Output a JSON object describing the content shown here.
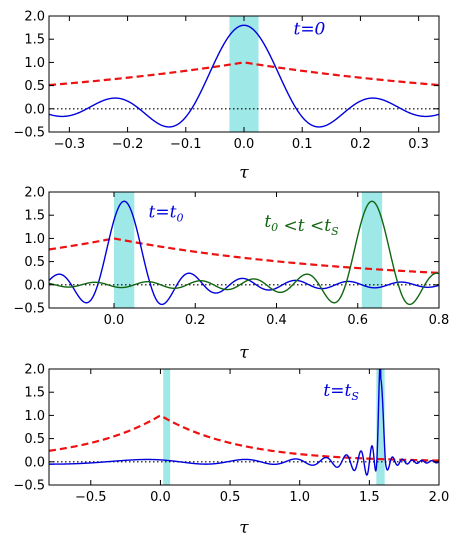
{
  "chart_data": [
    {
      "type": "line",
      "xlabel": "τ",
      "xlim": [
        -0.335,
        0.335
      ],
      "ylim": [
        -0.5,
        2.0
      ],
      "xticks": [
        -0.3,
        -0.2,
        -0.1,
        0.0,
        0.1,
        0.2,
        0.3
      ],
      "xtick_labels": [
        "−0.3",
        "−0.2",
        "−0.1",
        "0.0",
        "0.1",
        "0.2",
        "0.3"
      ],
      "yticks": [
        -0.5,
        0.0,
        0.5,
        1.0,
        1.5,
        2.0
      ],
      "ytick_labels": [
        "−0.5",
        "0.0",
        "0.5",
        "1.0",
        "1.5",
        "2.0"
      ],
      "zero_line": "black-dotted",
      "highlight_bands": [
        {
          "x0": -0.025,
          "x1": 0.025,
          "color": "#7fe0e0"
        }
      ],
      "envelope": {
        "style": "red-dashed",
        "color": "#ee1111",
        "peak_x": 0.0,
        "peak_y": 1.0,
        "decay_rate": 2.0
      },
      "series": [
        {
          "color": "#0000dd",
          "kind": "sinc",
          "center": 0.0,
          "amplitude": 1.8,
          "half_width": 0.09
        }
      ],
      "annotations": [
        {
          "text": "t=0",
          "parts": [
            [
              "t",
              ""
            ],
            [
              "=0",
              ""
            ]
          ],
          "color": "#0000dd",
          "x": 0.085,
          "y": 1.6
        }
      ]
    },
    {
      "type": "line",
      "xlabel": "τ",
      "xlim": [
        -0.16,
        0.8
      ],
      "ylim": [
        -0.5,
        2.0
      ],
      "xticks": [
        0.0,
        0.2,
        0.4,
        0.6,
        0.8
      ],
      "xtick_labels": [
        "0.0",
        "0.2",
        "0.4",
        "0.6",
        "0.8"
      ],
      "yticks": [
        -0.5,
        0.0,
        0.5,
        1.0,
        1.5,
        2.0
      ],
      "ytick_labels": [
        "−0.5",
        "0.0",
        "0.5",
        "1.0",
        "1.5",
        "2.0"
      ],
      "zero_line": "black-dotted",
      "highlight_bands": [
        {
          "x0": 0.0,
          "x1": 0.05,
          "color": "#7fe0e0"
        },
        {
          "x0": 0.61,
          "x1": 0.66,
          "color": "#7fe0e0"
        }
      ],
      "envelope": {
        "style": "red-dashed",
        "color": "#ee1111",
        "peak_x": 0.0,
        "peak_y": 1.0,
        "decay_rate": 1.7
      },
      "series": [
        {
          "color": "#0000dd",
          "kind": "chirp",
          "center": 0.025,
          "amplitude": 1.8,
          "half_width": 0.065
        },
        {
          "color": "#116611",
          "kind": "chirp",
          "center": 0.635,
          "amplitude": 1.8,
          "half_width": 0.065
        }
      ],
      "annotations": [
        {
          "text": "t=t0",
          "parts": [
            [
              "t=t",
              ""
            ],
            [
              "0",
              "sub"
            ]
          ],
          "color": "#0000dd",
          "x": 0.085,
          "y": 1.45
        },
        {
          "text": "t0 <t<tS",
          "parts": [
            [
              "t",
              ""
            ],
            [
              "0",
              "sub"
            ],
            [
              " <t <t",
              ""
            ],
            [
              "S",
              "sub"
            ]
          ],
          "color": "#116611",
          "x": 0.37,
          "y": 1.25
        }
      ]
    },
    {
      "type": "line",
      "xlabel": "τ",
      "xlim": [
        -0.8,
        2.0
      ],
      "ylim": [
        -0.5,
        2.0
      ],
      "xticks": [
        -0.5,
        0.0,
        0.5,
        1.0,
        1.5,
        2.0
      ],
      "xtick_labels": [
        "−0.5",
        "0.0",
        "0.5",
        "1.0",
        "1.5",
        "2.0"
      ],
      "yticks": [
        -0.5,
        0.0,
        0.5,
        1.0,
        1.5,
        2.0
      ],
      "ytick_labels": [
        "−0.5",
        "0.0",
        "0.5",
        "1.0",
        "1.5",
        "2.0"
      ],
      "zero_line": "black-dotted",
      "highlight_bands": [
        {
          "x0": 0.02,
          "x1": 0.07,
          "color": "#7fe0e0"
        },
        {
          "x0": 1.55,
          "x1": 1.61,
          "color": "#7fe0e0"
        }
      ],
      "envelope": {
        "style": "red-dashed",
        "color": "#ee1111",
        "peak_x": 0.0,
        "peak_y": 1.0,
        "decay_rate": 1.8
      },
      "series": [
        {
          "color": "#0000dd",
          "kind": "chirp-far",
          "center": 1.58,
          "amplitude": 1.8,
          "half_width": 0.035
        }
      ],
      "annotations": [
        {
          "text": "t=tS",
          "parts": [
            [
              "t=t",
              ""
            ],
            [
              "S",
              "sub"
            ]
          ],
          "color": "#0000dd",
          "x": 1.17,
          "y": 1.42
        }
      ]
    }
  ]
}
